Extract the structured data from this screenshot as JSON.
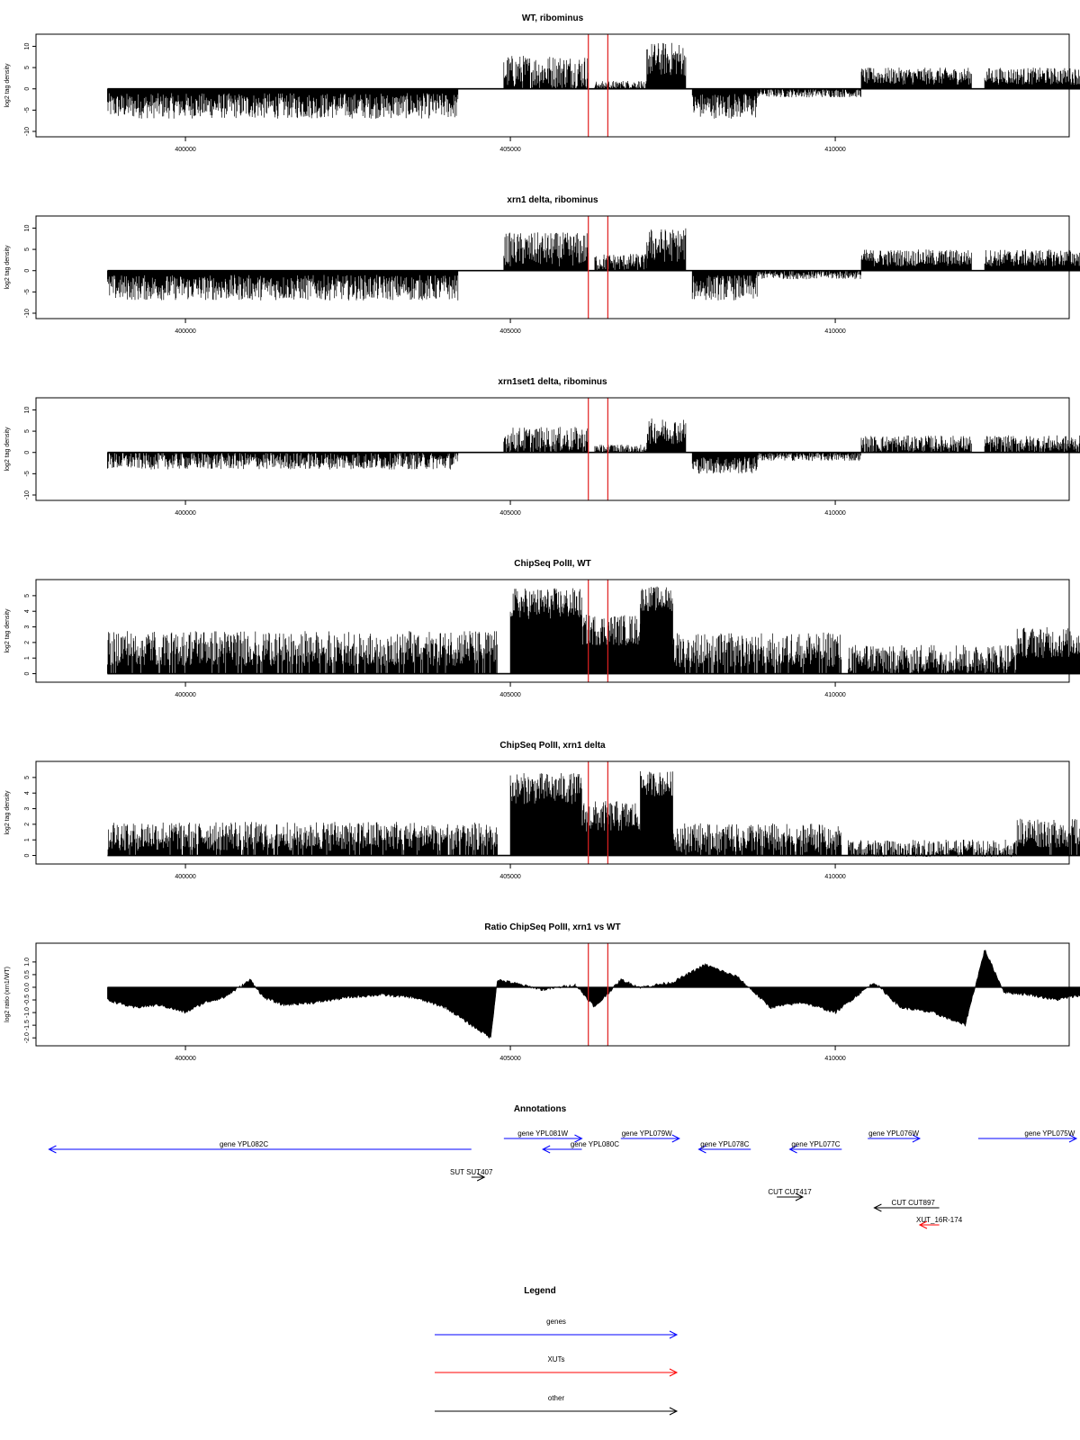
{
  "chart_data": [
    {
      "type": "bar",
      "title": "WT, ribominus",
      "ylabel": "log2 tag density",
      "xlim": [
        397700,
        413600
      ],
      "ylim": [
        -10,
        12
      ],
      "x_ticks": [
        "400000",
        "405000",
        "410000"
      ],
      "y_ticks": [
        "-10",
        "-5",
        "0",
        "5",
        "10"
      ],
      "marker_lines": [
        406200,
        406500
      ],
      "profile_segments": [
        {
          "x_start": 398800,
          "x_end": 404200,
          "value": -4,
          "noise": 3
        },
        {
          "x_start": 404900,
          "x_end": 406200,
          "value": 4,
          "noise": 4
        },
        {
          "x_start": 406300,
          "x_end": 406500,
          "value": 1,
          "noise": 1
        },
        {
          "x_start": 406500,
          "x_end": 407100,
          "value": 1,
          "noise": 1
        },
        {
          "x_start": 407100,
          "x_end": 407700,
          "value": 7,
          "noise": 4
        },
        {
          "x_start": 407800,
          "x_end": 408800,
          "value": -4,
          "noise": 3
        },
        {
          "x_start": 408800,
          "x_end": 410400,
          "value": -1,
          "noise": 1
        },
        {
          "x_start": 410400,
          "x_end": 412100,
          "value": 3,
          "noise": 2
        },
        {
          "x_start": 412300,
          "x_end": 413800,
          "value": 3,
          "noise": 2
        }
      ]
    },
    {
      "type": "bar",
      "title": "xrn1 delta, ribominus",
      "ylabel": "log2 tag density",
      "xlim": [
        397700,
        413600
      ],
      "ylim": [
        -10,
        12
      ],
      "x_ticks": [
        "400000",
        "405000",
        "410000"
      ],
      "y_ticks": [
        "-10",
        "-5",
        "0",
        "5",
        "10"
      ],
      "marker_lines": [
        406200,
        406500
      ],
      "profile_segments": [
        {
          "x_start": 398800,
          "x_end": 404200,
          "value": -4,
          "noise": 3
        },
        {
          "x_start": 404900,
          "x_end": 406200,
          "value": 5,
          "noise": 4
        },
        {
          "x_start": 406300,
          "x_end": 407100,
          "value": 2,
          "noise": 2
        },
        {
          "x_start": 407100,
          "x_end": 407700,
          "value": 6,
          "noise": 4
        },
        {
          "x_start": 407800,
          "x_end": 408800,
          "value": -4,
          "noise": 3
        },
        {
          "x_start": 408800,
          "x_end": 410400,
          "value": -1,
          "noise": 1
        },
        {
          "x_start": 410400,
          "x_end": 412100,
          "value": 3,
          "noise": 2
        },
        {
          "x_start": 412300,
          "x_end": 413800,
          "value": 3,
          "noise": 2
        }
      ]
    },
    {
      "type": "bar",
      "title": "xrn1set1 delta, ribominus",
      "ylabel": "log2 tag density",
      "xlim": [
        397700,
        413600
      ],
      "ylim": [
        -10,
        12
      ],
      "x_ticks": [
        "400000",
        "405000",
        "410000"
      ],
      "y_ticks": [
        "-10",
        "-5",
        "0",
        "5",
        "10"
      ],
      "marker_lines": [
        406200,
        406500
      ],
      "profile_segments": [
        {
          "x_start": 398800,
          "x_end": 404200,
          "value": -2,
          "noise": 2
        },
        {
          "x_start": 404900,
          "x_end": 406200,
          "value": 3,
          "noise": 3
        },
        {
          "x_start": 406300,
          "x_end": 407100,
          "value": 1,
          "noise": 1
        },
        {
          "x_start": 407100,
          "x_end": 407700,
          "value": 5,
          "noise": 3
        },
        {
          "x_start": 407800,
          "x_end": 408800,
          "value": -3,
          "noise": 2
        },
        {
          "x_start": 408800,
          "x_end": 410400,
          "value": -1,
          "noise": 1
        },
        {
          "x_start": 410400,
          "x_end": 412100,
          "value": 2,
          "noise": 2
        },
        {
          "x_start": 412300,
          "x_end": 413800,
          "value": 2,
          "noise": 2
        }
      ]
    },
    {
      "type": "bar",
      "title": "ChipSeq PolII, WT",
      "ylabel": "log2 tag density",
      "xlim": [
        397700,
        413600
      ],
      "ylim": [
        -0.2,
        5.8
      ],
      "x_ticks": [
        "400000",
        "405000",
        "410000"
      ],
      "y_ticks": [
        "0",
        "1",
        "2",
        "3",
        "4",
        "5"
      ],
      "marker_lines": [
        406200,
        406500
      ],
      "profile_segments": [
        {
          "x_start": 398800,
          "x_end": 404800,
          "value": 1.7,
          "noise": 1.2
        },
        {
          "x_start": 405000,
          "x_end": 406100,
          "value": 4.5,
          "noise": 1
        },
        {
          "x_start": 406100,
          "x_end": 407000,
          "value": 2.8,
          "noise": 1
        },
        {
          "x_start": 407000,
          "x_end": 407500,
          "value": 4.8,
          "noise": 0.8
        },
        {
          "x_start": 407500,
          "x_end": 410100,
          "value": 1.6,
          "noise": 1.2
        },
        {
          "x_start": 410200,
          "x_end": 412800,
          "value": 1,
          "noise": 1
        },
        {
          "x_start": 412800,
          "x_end": 413800,
          "value": 2,
          "noise": 1
        }
      ]
    },
    {
      "type": "bar",
      "title": "ChipSeq PolII, xrn1 delta",
      "ylabel": "log2 tag density",
      "xlim": [
        397700,
        413600
      ],
      "ylim": [
        -0.2,
        5.8
      ],
      "x_ticks": [
        "400000",
        "405000",
        "410000"
      ],
      "y_ticks": [
        "0",
        "1",
        "2",
        "3",
        "4",
        "5"
      ],
      "marker_lines": [
        406200,
        406500
      ],
      "profile_segments": [
        {
          "x_start": 398800,
          "x_end": 404800,
          "value": 1.3,
          "noise": 1
        },
        {
          "x_start": 405000,
          "x_end": 406100,
          "value": 4.3,
          "noise": 1
        },
        {
          "x_start": 406100,
          "x_end": 407000,
          "value": 2.5,
          "noise": 1
        },
        {
          "x_start": 407000,
          "x_end": 407500,
          "value": 4.6,
          "noise": 0.8
        },
        {
          "x_start": 407500,
          "x_end": 410100,
          "value": 1.2,
          "noise": 1
        },
        {
          "x_start": 410200,
          "x_end": 412800,
          "value": 0.5,
          "noise": 0.6
        },
        {
          "x_start": 412800,
          "x_end": 413800,
          "value": 1.5,
          "noise": 1
        }
      ]
    },
    {
      "type": "area",
      "title": "Ratio ChipSeq PolII, xrn1 vs WT",
      "ylabel": "log2 ratio (xrn1/WT)",
      "xlim": [
        397700,
        413600
      ],
      "ylim": [
        -2.1,
        1.6
      ],
      "x_ticks": [
        "400000",
        "405000",
        "410000"
      ],
      "y_ticks": [
        "-2.0",
        "-1.5",
        "-1.0",
        "-0.5",
        "0.0",
        "0.5",
        "1.0"
      ],
      "marker_lines": [
        406200,
        406500
      ],
      "x": [
        398800,
        399200,
        399600,
        400000,
        400300,
        400600,
        401000,
        401200,
        401500,
        402000,
        402500,
        403000,
        403500,
        404000,
        404400,
        404700,
        404800,
        405000,
        405500,
        406000,
        406300,
        406700,
        407000,
        407500,
        408000,
        408500,
        409000,
        409500,
        410000,
        410300,
        410600,
        411000,
        411500,
        412000,
        412300,
        412600,
        413000,
        413400,
        413800
      ],
      "values": [
        -0.5,
        -0.8,
        -0.7,
        -1,
        -0.6,
        -0.4,
        0.3,
        -0.4,
        -0.7,
        -0.6,
        -0.4,
        -0.3,
        -0.4,
        -0.8,
        -1.5,
        -2,
        0.3,
        0.2,
        -0.1,
        0.1,
        -0.8,
        0.3,
        0,
        0.2,
        0.9,
        0.4,
        -0.8,
        -0.6,
        -1,
        -0.4,
        0.2,
        -0.8,
        -1,
        -1.5,
        1.5,
        -0.2,
        -0.3,
        -0.5,
        -0.3
      ]
    }
  ],
  "annotations": {
    "title": "Annotations",
    "features": [
      {
        "label": "gene YPL082C",
        "category": "gene",
        "x_start": 404400,
        "x_end": 397900,
        "row": 1,
        "label_pos": 400900
      },
      {
        "label": "gene YPL081W",
        "category": "gene",
        "x_start": 404900,
        "x_end": 406100,
        "row": 0,
        "label_pos": 405500
      },
      {
        "label": "gene YPL080C",
        "category": "gene",
        "x_start": 406100,
        "x_end": 405500,
        "row": 1,
        "label_pos": 406300
      },
      {
        "label": "gene YPL079W",
        "category": "gene",
        "x_start": 406700,
        "x_end": 407600,
        "row": 0,
        "label_pos": 407100
      },
      {
        "label": "gene YPL078C",
        "category": "gene",
        "x_start": 408700,
        "x_end": 407900,
        "row": 1,
        "label_pos": 408300
      },
      {
        "label": "gene YPL077C",
        "category": "gene",
        "x_start": 410100,
        "x_end": 409300,
        "row": 1,
        "label_pos": 409700
      },
      {
        "label": "gene YPL076W",
        "category": "gene",
        "x_start": 410500,
        "x_end": 411300,
        "row": 0,
        "label_pos": 410900
      },
      {
        "label": "gene YPL075W",
        "category": "gene",
        "x_start": 412200,
        "x_end": 413900,
        "row": 0,
        "label_pos": 413300
      },
      {
        "label": "SUT SUT407",
        "category": "other",
        "x_start": 404400,
        "x_end": 404600,
        "row": 2,
        "label_pos": 404400
      },
      {
        "label": "CUT CUT417",
        "category": "other",
        "x_start": 409100,
        "x_end": 409500,
        "row": 3,
        "label_pos": 409300
      },
      {
        "label": "CUT CUT897",
        "category": "other",
        "x_start": 411600,
        "x_end": 410600,
        "row": 4,
        "label_pos": 411200
      },
      {
        "label": "XUT_16R-174",
        "category": "XUT",
        "x_start": 411600,
        "x_end": 411300,
        "row": 5,
        "label_pos": 411600
      }
    ]
  },
  "legend": {
    "title": "Legend",
    "items": [
      {
        "label": "genes",
        "color": "#0000ff"
      },
      {
        "label": "XUTs",
        "color": "#ff0000"
      },
      {
        "label": "other",
        "color": "#000000"
      }
    ]
  }
}
